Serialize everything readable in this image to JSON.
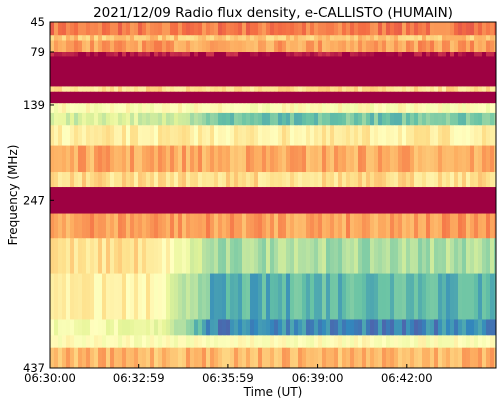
{
  "chart_data": {
    "type": "heatmap",
    "title": "2021/12/09  Radio flux density, e-CALLISTO (HUMAIN)",
    "xlabel": "Time (UT)",
    "ylabel": "Frequency (MHz)",
    "x_ticks": [
      "06:30:00",
      "06:32:59",
      "06:35:59",
      "06:39:00",
      "06:42:00"
    ],
    "x_tick_seconds": [
      0,
      179,
      359,
      540,
      720
    ],
    "x_range_seconds": [
      0,
      900
    ],
    "y_ticks": [
      45,
      79,
      139,
      247,
      437
    ],
    "y_range": [
      45,
      437
    ],
    "y_inverted": true,
    "colormap": "Spectral",
    "grid": false,
    "bands": [
      {
        "from": 45,
        "to": 60,
        "level": 0.22
      },
      {
        "from": 60,
        "to": 66,
        "level": 0.35
      },
      {
        "from": 66,
        "to": 79,
        "level": 0.28
      },
      {
        "from": 79,
        "to": 84,
        "level": 0.03
      },
      {
        "from": 84,
        "to": 118,
        "level": 0.0
      },
      {
        "from": 118,
        "to": 124,
        "level": 0.4
      },
      {
        "from": 124,
        "to": 137,
        "level": 0.0
      },
      {
        "from": 137,
        "to": 148,
        "level": 0.5
      },
      {
        "from": 148,
        "to": 162,
        "level": 0.62,
        "ramp_to": 0.78,
        "ramp_start": 105
      },
      {
        "from": 162,
        "to": 185,
        "level": 0.45
      },
      {
        "from": 185,
        "to": 215,
        "level": 0.3
      },
      {
        "from": 215,
        "to": 232,
        "level": 0.4
      },
      {
        "from": 232,
        "to": 262,
        "level": 0.0
      },
      {
        "from": 262,
        "to": 290,
        "level": 0.28
      },
      {
        "from": 290,
        "to": 330,
        "level": 0.4,
        "ramp_to": 0.7,
        "ramp_start": 100
      },
      {
        "from": 330,
        "to": 382,
        "level": 0.45,
        "ramp_to": 0.82,
        "ramp_start": 100
      },
      {
        "from": 382,
        "to": 400,
        "level": 0.55,
        "ramp_to": 0.9,
        "ramp_start": 100
      },
      {
        "from": 400,
        "to": 414,
        "level": 0.5
      },
      {
        "from": 414,
        "to": 437,
        "level": 0.32
      }
    ]
  }
}
